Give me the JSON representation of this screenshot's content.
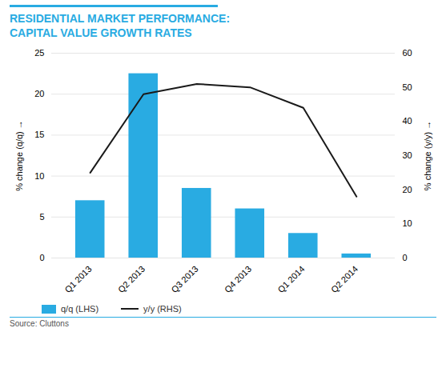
{
  "chart_data": {
    "type": "bar",
    "title": "RESIDENTIAL MARKET PERFORMANCE:",
    "subtitle": "CAPITAL VALUE GROWTH RATES",
    "caption": "Source: Cluttons",
    "categories": [
      "Q1 2013",
      "Q2 2013",
      "Q3 2013",
      "Q4 2013",
      "Q1 2014",
      "Q2 2014"
    ],
    "series": [
      {
        "name": "q/q (LHS)",
        "type": "bar",
        "color": "#29abe2",
        "values": [
          7.0,
          22.5,
          8.5,
          6.0,
          3.0,
          0.5
        ]
      },
      {
        "name": "y/y (RHS)",
        "type": "line",
        "color": "#1a1a1a",
        "axis": "y2",
        "values": [
          25,
          48,
          51,
          50,
          44,
          18
        ]
      }
    ],
    "ylabel": "% change (q/q)",
    "y2label": "% change (y/y)",
    "ylim": [
      0,
      25
    ],
    "yticks": [
      0,
      5,
      10,
      15,
      20,
      25
    ],
    "y2lim": [
      0,
      60
    ],
    "y2ticks": [
      0,
      10,
      20,
      30,
      40,
      50,
      60
    ],
    "grid": true,
    "legend": "bottom"
  }
}
